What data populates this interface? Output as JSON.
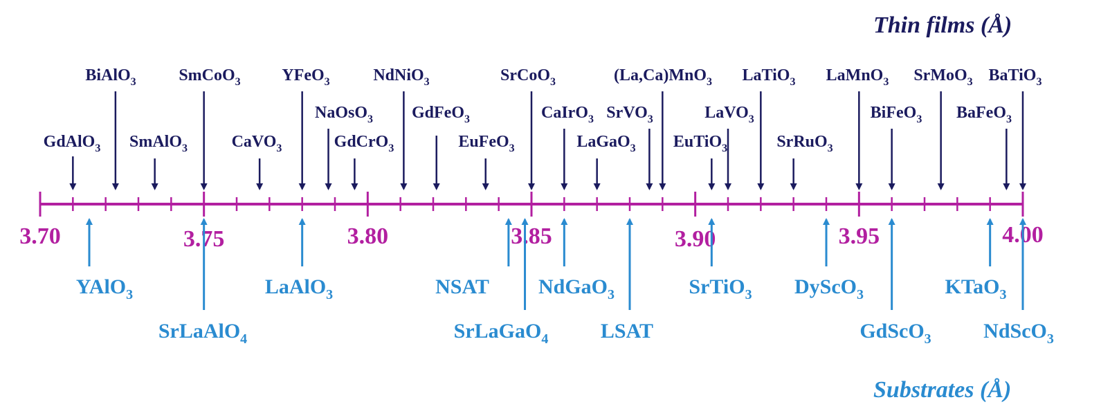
{
  "headings": {
    "films": "Thin films (Å)",
    "substrates": "Substrates (Å)"
  },
  "colors": {
    "axis": "#b21fa0",
    "film": "#1b1b5e",
    "substrate": "#2a8bd0"
  },
  "axis": {
    "min": 3.7,
    "max": 4.0,
    "tick_labels": [
      "3.70",
      "3.75",
      "3.80",
      "3.85",
      "3.90",
      "3.95",
      "4.00"
    ]
  },
  "films": [
    {
      "text": "GdAlO",
      "sub": "3",
      "value": 3.71
    },
    {
      "text": "BiAlO",
      "sub": "3",
      "value": 3.723
    },
    {
      "text": "SmAlO",
      "sub": "3",
      "value": 3.735
    },
    {
      "text": "SmCoO",
      "sub": "3",
      "value": 3.75
    },
    {
      "text": "CaVO",
      "sub": "3",
      "value": 3.767
    },
    {
      "text": "YFeO",
      "sub": "3",
      "value": 3.78
    },
    {
      "text": "NaOsO",
      "sub": "3",
      "value": 3.788
    },
    {
      "text": "GdCrO",
      "sub": "3",
      "value": 3.796
    },
    {
      "text": "NdNiO",
      "sub": "3",
      "value": 3.811
    },
    {
      "text": "GdFeO",
      "sub": "3",
      "value": 3.821
    },
    {
      "text": "EuFeO",
      "sub": "3",
      "value": 3.836
    },
    {
      "text": "SrCoO",
      "sub": "3",
      "value": 3.85
    },
    {
      "text": "CaIrO",
      "sub": "3",
      "value": 3.86
    },
    {
      "text": "LaGaO",
      "sub": "3",
      "value": 3.87
    },
    {
      "text": "SrVO",
      "sub": "3",
      "value": 3.886
    },
    {
      "text": "(La,Ca)MnO",
      "sub": "3",
      "value": 3.89
    },
    {
      "text": "EuTiO",
      "sub": "3",
      "value": 3.905
    },
    {
      "text": "LaVO",
      "sub": "3",
      "value": 3.91
    },
    {
      "text": "LaTiO",
      "sub": "3",
      "value": 3.92
    },
    {
      "text": "SrRuO",
      "sub": "3",
      "value": 3.93
    },
    {
      "text": "LaMnO",
      "sub": "3",
      "value": 3.95
    },
    {
      "text": "BiFeO",
      "sub": "3",
      "value": 3.96
    },
    {
      "text": "SrMoO",
      "sub": "3",
      "value": 3.975
    },
    {
      "text": "BaFeO",
      "sub": "3",
      "value": 3.995
    },
    {
      "text": "BaTiO",
      "sub": "3",
      "value": 4.0
    }
  ],
  "substrates": [
    {
      "text": "YAlO",
      "sub": "3",
      "value": 3.715
    },
    {
      "text": "SrLaAlO",
      "sub": "4",
      "value": 3.75
    },
    {
      "text": "LaAlO",
      "sub": "3",
      "value": 3.78
    },
    {
      "text": "NSAT",
      "sub": "",
      "value": 3.843
    },
    {
      "text": "SrLaGaO",
      "sub": "4",
      "value": 3.848
    },
    {
      "text": "NdGaO",
      "sub": "3",
      "value": 3.86
    },
    {
      "text": "LSAT",
      "sub": "",
      "value": 3.88
    },
    {
      "text": "SrTiO",
      "sub": "3",
      "value": 3.905
    },
    {
      "text": "DyScO",
      "sub": "3",
      "value": 3.94
    },
    {
      "text": "GdScO",
      "sub": "3",
      "value": 3.96
    },
    {
      "text": "KTaO",
      "sub": "3",
      "value": 3.99
    },
    {
      "text": "NdScO",
      "sub": "3",
      "value": 4.0
    }
  ]
}
